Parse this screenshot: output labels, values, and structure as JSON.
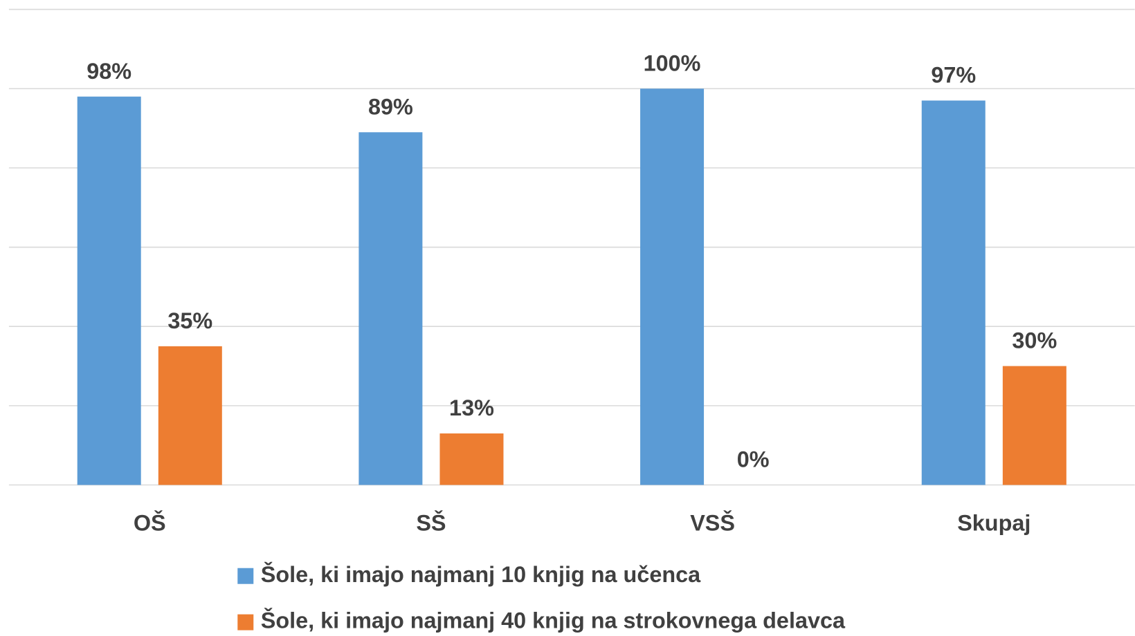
{
  "chart_data": {
    "type": "bar",
    "categories": [
      "OŠ",
      "SŠ",
      "VSŠ",
      "Skupaj"
    ],
    "series": [
      {
        "name": "Šole, ki imajo najmanj 10 knjig na učenca",
        "color": "#5b9bd5",
        "values": [
          98,
          89,
          100,
          97
        ],
        "value_labels": [
          "98%",
          "89%",
          "100%",
          "97%"
        ]
      },
      {
        "name": "Šole, ki imajo najmanj 40 knjig na strokovnega delavca",
        "color": "#ed7d31",
        "values": [
          35,
          13,
          0,
          30
        ],
        "value_labels": [
          "35%",
          "13%",
          "0%",
          "30%"
        ]
      }
    ],
    "ylim": [
      0,
      120
    ],
    "yticks": [
      0,
      20,
      40,
      60,
      80,
      100,
      120
    ],
    "grid": true,
    "legend": "bottom"
  }
}
